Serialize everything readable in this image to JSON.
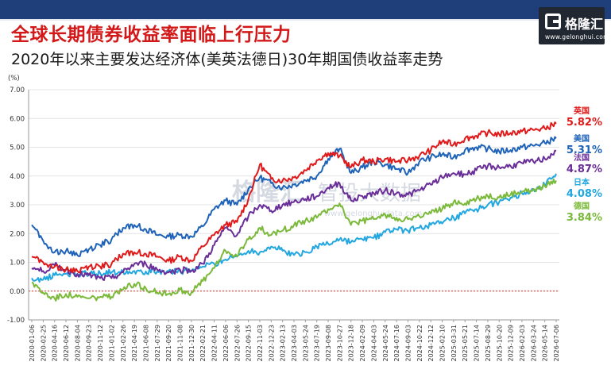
{
  "header": {
    "title": "全球长期债券收益率面临上行压力",
    "subtitle": "2020年以来主要发达经济体(美英法德日)30年期国债收益率走势"
  },
  "logo": {
    "name": "格隆汇",
    "url": "www.gelonghui.com"
  },
  "watermark": {
    "brand": "格隆汇",
    "brand2": "智投大数据",
    "url": "www.gelonghuidata.com"
  },
  "colors": {
    "uk": "#e01a1a",
    "us": "#1f63b8",
    "france": "#6a2e98",
    "japan": "#22a7e0",
    "germany": "#7bb93a",
    "zero_line": "#c0392b",
    "title": "#d21818"
  },
  "chart_data": {
    "type": "line",
    "title": "",
    "ylabel": "(%)",
    "xlabel": "",
    "ylim": [
      -1.0,
      7.0
    ],
    "yticks": [
      "-1.00",
      "0.00",
      "1.00",
      "2.00",
      "3.00",
      "4.00",
      "5.00",
      "6.00",
      "7.00"
    ],
    "grid": true,
    "x": [
      "2020-01-06",
      "2020-02-25",
      "2020-04-16",
      "2020-06-12",
      "2020-08-04",
      "2020-09-23",
      "2020-11-12",
      "2021-01-02",
      "2021-02-26",
      "2021-04-19",
      "2021-06-08",
      "2021-07-29",
      "2021-09-20",
      "2021-11-08",
      "2021-12-30",
      "2022-02-21",
      "2022-04-11",
      "2022-06-06",
      "2022-07-26",
      "2022-09-15",
      "2022-11-03",
      "2022-12-23",
      "2023-02-13",
      "2023-04-03",
      "2023-05-24",
      "2023-07-19",
      "2023-09-08",
      "2023-10-27",
      "2023-12-18",
      "2024-02-09",
      "2024-04-03",
      "2024-05-24",
      "2024-07-16",
      "2024-09-03",
      "2024-10-22",
      "2024-12-12",
      "2025-02-10",
      "2025-03-31",
      "2025-05-21",
      "2025-07-14",
      "2025-08-29",
      "2025-10-20",
      "2025-12-09",
      "2026-02-03",
      "2026-03-24",
      "2026-05-14",
      "2026-07-06"
    ],
    "series": [
      {
        "key": "uk",
        "name": "英国",
        "last_label": "5.82%",
        "values": [
          1.2,
          1.0,
          0.85,
          0.75,
          0.7,
          0.85,
          0.85,
          0.95,
          1.3,
          1.35,
          1.3,
          1.2,
          1.05,
          1.2,
          1.05,
          1.55,
          1.95,
          2.3,
          2.4,
          3.2,
          4.4,
          3.9,
          3.85,
          3.95,
          4.2,
          4.55,
          4.8,
          4.7,
          4.3,
          4.55,
          4.5,
          4.6,
          4.5,
          4.55,
          4.7,
          4.9,
          5.2,
          5.1,
          5.3,
          5.4,
          5.5,
          5.45,
          5.5,
          5.55,
          5.6,
          5.65,
          5.82
        ]
      },
      {
        "key": "us",
        "name": "美国",
        "last_label": "5.31%",
        "values": [
          2.3,
          1.75,
          1.35,
          1.4,
          1.25,
          1.45,
          1.6,
          1.8,
          2.2,
          2.3,
          2.15,
          1.95,
          1.9,
          1.95,
          1.9,
          2.25,
          2.85,
          3.15,
          3.0,
          3.55,
          3.95,
          3.75,
          3.6,
          3.7,
          3.85,
          4.0,
          4.6,
          4.95,
          4.1,
          4.3,
          4.5,
          4.4,
          4.25,
          4.1,
          4.5,
          4.65,
          4.75,
          4.65,
          4.9,
          5.0,
          4.95,
          4.85,
          4.9,
          5.0,
          5.05,
          5.15,
          5.31
        ]
      },
      {
        "key": "france",
        "name": "法国",
        "last_label": "4.87%",
        "values": [
          0.8,
          0.7,
          0.9,
          0.75,
          0.6,
          0.55,
          0.45,
          0.45,
          0.65,
          0.95,
          0.95,
          0.75,
          0.65,
          0.75,
          0.7,
          0.95,
          1.6,
          2.2,
          1.95,
          2.6,
          3.0,
          2.8,
          3.0,
          3.1,
          3.2,
          3.3,
          3.6,
          3.75,
          3.15,
          3.3,
          3.4,
          3.5,
          3.4,
          3.35,
          3.5,
          3.7,
          3.95,
          4.1,
          4.05,
          4.2,
          4.35,
          4.3,
          4.35,
          4.45,
          4.5,
          4.6,
          4.87
        ]
      },
      {
        "key": "japan",
        "name": "日本",
        "last_label": "4.08%",
        "values": [
          0.45,
          0.4,
          0.55,
          0.6,
          0.6,
          0.6,
          0.62,
          0.65,
          0.68,
          0.7,
          0.68,
          0.68,
          0.7,
          0.7,
          0.7,
          0.85,
          0.95,
          1.1,
          1.2,
          1.4,
          1.35,
          1.55,
          1.4,
          1.25,
          1.35,
          1.55,
          1.65,
          1.8,
          1.7,
          1.8,
          1.85,
          2.05,
          2.15,
          2.1,
          2.2,
          2.3,
          2.35,
          2.55,
          2.7,
          2.85,
          3.0,
          3.1,
          3.25,
          3.4,
          3.55,
          3.7,
          4.08
        ]
      },
      {
        "key": "germany",
        "name": "德国",
        "last_label": "3.84%",
        "values": [
          0.3,
          -0.05,
          -0.25,
          -0.1,
          -0.2,
          -0.25,
          -0.2,
          -0.2,
          0.05,
          0.25,
          0.1,
          -0.05,
          -0.1,
          0.05,
          -0.05,
          0.35,
          0.8,
          1.4,
          1.2,
          1.8,
          2.2,
          1.95,
          2.1,
          2.3,
          2.45,
          2.55,
          2.85,
          3.05,
          2.3,
          2.45,
          2.5,
          2.65,
          2.55,
          2.5,
          2.6,
          2.7,
          2.85,
          3.1,
          3.05,
          3.2,
          3.3,
          3.25,
          3.35,
          3.45,
          3.55,
          3.65,
          3.84
        ]
      }
    ]
  }
}
